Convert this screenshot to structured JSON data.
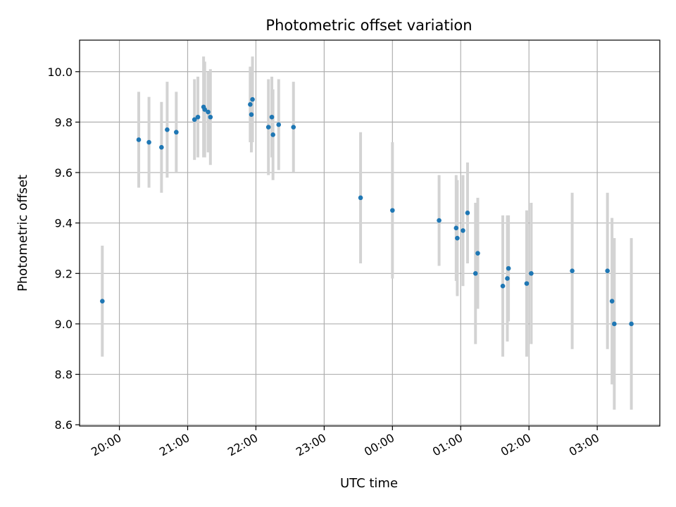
{
  "chart_data": {
    "type": "scatter",
    "title": "Photometric offset variation",
    "xlabel": "UTC time",
    "ylabel": "Photometric offset",
    "x_unit": "UTC time (HH:MM), night crossing midnight",
    "xlim": [
      "19:25",
      "03:55"
    ],
    "ylim": [
      8.595,
      10.125
    ],
    "x_ticks": [
      "20:00",
      "21:00",
      "22:00",
      "23:00",
      "00:00",
      "01:00",
      "02:00",
      "03:00"
    ],
    "y_ticks": [
      8.6,
      8.8,
      9.0,
      9.2,
      9.4,
      9.6,
      9.8,
      10.0
    ],
    "y_tick_labels": [
      "8.6",
      "8.8",
      "9.0",
      "9.2",
      "9.4",
      "9.6",
      "9.8",
      "10.0"
    ],
    "grid": true,
    "marker_color": "#1f77b4",
    "errorbar_color": "#d3d3d3",
    "points": [
      {
        "x": "19:45",
        "y": 9.09,
        "err": 0.22
      },
      {
        "x": "20:17",
        "y": 9.73,
        "err": 0.19
      },
      {
        "x": "20:26",
        "y": 9.72,
        "err": 0.18
      },
      {
        "x": "20:37",
        "y": 9.7,
        "err": 0.18
      },
      {
        "x": "20:42",
        "y": 9.77,
        "err": 0.19
      },
      {
        "x": "20:50",
        "y": 9.76,
        "err": 0.16
      },
      {
        "x": "21:06",
        "y": 9.81,
        "err": 0.16
      },
      {
        "x": "21:09",
        "y": 9.82,
        "err": 0.16
      },
      {
        "x": "21:14",
        "y": 9.86,
        "err": 0.2
      },
      {
        "x": "21:15",
        "y": 9.85,
        "err": 0.19
      },
      {
        "x": "21:18",
        "y": 9.84,
        "err": 0.16
      },
      {
        "x": "21:20",
        "y": 9.82,
        "err": 0.19
      },
      {
        "x": "21:55",
        "y": 9.87,
        "err": 0.15
      },
      {
        "x": "21:56",
        "y": 9.83,
        "err": 0.15
      },
      {
        "x": "21:57",
        "y": 9.89,
        "err": 0.17
      },
      {
        "x": "22:11",
        "y": 9.78,
        "err": 0.19
      },
      {
        "x": "22:14",
        "y": 9.82,
        "err": 0.16
      },
      {
        "x": "22:15",
        "y": 9.75,
        "err": 0.18
      },
      {
        "x": "22:20",
        "y": 9.79,
        "err": 0.18
      },
      {
        "x": "22:33",
        "y": 9.78,
        "err": 0.18
      },
      {
        "x": "23:32",
        "y": 9.5,
        "err": 0.26
      },
      {
        "x": "00:00",
        "y": 9.45,
        "err": 0.27
      },
      {
        "x": "00:41",
        "y": 9.41,
        "err": 0.18
      },
      {
        "x": "00:56",
        "y": 9.38,
        "err": 0.21
      },
      {
        "x": "00:57",
        "y": 9.34,
        "err": 0.23
      },
      {
        "x": "01:02",
        "y": 9.37,
        "err": 0.22
      },
      {
        "x": "01:06",
        "y": 9.44,
        "err": 0.2
      },
      {
        "x": "01:13",
        "y": 9.2,
        "err": 0.28
      },
      {
        "x": "01:15",
        "y": 9.28,
        "err": 0.22
      },
      {
        "x": "01:37",
        "y": 9.15,
        "err": 0.28
      },
      {
        "x": "01:41",
        "y": 9.18,
        "err": 0.25
      },
      {
        "x": "01:42",
        "y": 9.22,
        "err": 0.21
      },
      {
        "x": "01:58",
        "y": 9.16,
        "err": 0.29
      },
      {
        "x": "02:02",
        "y": 9.2,
        "err": 0.28
      },
      {
        "x": "02:38",
        "y": 9.21,
        "err": 0.31
      },
      {
        "x": "03:09",
        "y": 9.21,
        "err": 0.31
      },
      {
        "x": "03:13",
        "y": 9.09,
        "err": 0.33
      },
      {
        "x": "03:15",
        "y": 9.0,
        "err": 0.34
      },
      {
        "x": "03:30",
        "y": 9.0,
        "err": 0.34
      }
    ]
  }
}
